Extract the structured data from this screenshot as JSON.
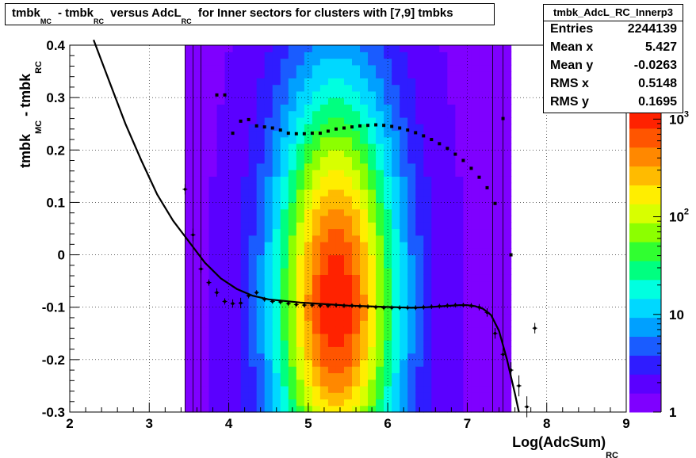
{
  "title": {
    "parts": [
      {
        "text": "tmbk",
        "sub": "MC"
      },
      {
        "text": " - tmbk",
        "sub": "RC"
      },
      {
        "text": " versus AdcL",
        "sub": "RC"
      },
      {
        "text": " for Inner sectors for clusters with [7,9] tmbks",
        "sub": ""
      }
    ]
  },
  "stats": {
    "name": "tmbk_AdcL_RC_Innerp3",
    "rows": [
      {
        "key": "Entries",
        "value": "2244139"
      },
      {
        "key": "Mean x",
        "value": "5.427"
      },
      {
        "key": "Mean y",
        "value": "-0.0263"
      },
      {
        "key": "RMS x",
        "value": "0.5148"
      },
      {
        "key": "RMS y",
        "value": "0.1695"
      }
    ]
  },
  "chart_data": {
    "type": "heatmap",
    "xlabel": "Log(AdcSum)",
    "xlabel_sub": "RC",
    "ylabel": "tmbk",
    "ylabel_sub1": "MC",
    "ylabel_mid": " - tmbk",
    "ylabel_sub2": "RC",
    "xlim": [
      2,
      9
    ],
    "ylim": [
      -0.3,
      0.4
    ],
    "x_ticks": [
      "2",
      "3",
      "4",
      "5",
      "6",
      "7",
      "8",
      "9"
    ],
    "y_ticks": [
      "-0.3",
      "-0.2",
      "-0.1",
      "0",
      "0.1",
      "0.2",
      "0.3",
      "0.4"
    ],
    "grid": true,
    "log_z": true,
    "z_ticks": [
      {
        "label": "1",
        "value": 1
      },
      {
        "label": "10",
        "value": 10
      },
      {
        "label": "10",
        "sup": "2",
        "value": 100
      },
      {
        "label": "10",
        "sup": "3",
        "value": 1000
      }
    ],
    "density": {
      "x_center": 5.35,
      "x_sigma": 0.55,
      "y_center": -0.1,
      "y_sigma_low": 0.25,
      "y_sigma_high": 0.3,
      "x_min": 3.45,
      "x_max": 7.5
    },
    "mean_profile": {
      "x": [
        3.45,
        3.55,
        3.65,
        3.75,
        3.85,
        3.95,
        4.05,
        4.15,
        4.25,
        4.35,
        4.45,
        4.55,
        4.65,
        4.75,
        4.85,
        4.95,
        5.05,
        5.15,
        5.25,
        5.35,
        5.45,
        5.55,
        5.65,
        5.75,
        5.85,
        5.95,
        6.05,
        6.15,
        6.25,
        6.35,
        6.45,
        6.55,
        6.65,
        6.75,
        6.85,
        6.95,
        7.05,
        7.15,
        7.25,
        7.35,
        7.45,
        7.55,
        7.65,
        7.75,
        7.85
      ],
      "y": [
        0.125,
        0.038,
        -0.027,
        -0.053,
        -0.072,
        -0.089,
        -0.093,
        -0.092,
        -0.078,
        -0.072,
        -0.085,
        -0.089,
        -0.09,
        -0.093,
        -0.095,
        -0.096,
        -0.096,
        -0.097,
        -0.097,
        -0.096,
        -0.097,
        -0.097,
        -0.098,
        -0.099,
        -0.1,
        -0.101,
        -0.101,
        -0.101,
        -0.101,
        -0.101,
        -0.1,
        -0.099,
        -0.098,
        -0.097,
        -0.096,
        -0.096,
        -0.097,
        -0.1,
        -0.11,
        -0.15,
        -0.19,
        -0.22,
        -0.25,
        -0.29,
        -0.14
      ],
      "err": [
        0.01,
        0.012,
        0.008,
        0.006,
        0.008,
        0.006,
        0.008,
        0.01,
        0.005,
        0.004,
        0.003,
        0.002,
        0.002,
        0.002,
        0.002,
        0.001,
        0.001,
        0.001,
        0.001,
        0.001,
        0.001,
        0.001,
        0.001,
        0.001,
        0.001,
        0.001,
        0.001,
        0.001,
        0.001,
        0.001,
        0.001,
        0.002,
        0.002,
        0.002,
        0.003,
        0.004,
        0.005,
        0.006,
        0.008,
        0.01,
        0.012,
        0.015,
        0.02,
        0.02,
        0.01
      ]
    },
    "rms_profile": {
      "x": [
        3.85,
        3.95,
        4.05,
        4.15,
        4.25,
        4.35,
        4.45,
        4.55,
        4.65,
        4.75,
        4.85,
        4.95,
        5.05,
        5.15,
        5.25,
        5.35,
        5.45,
        5.55,
        5.65,
        5.75,
        5.85,
        5.95,
        6.05,
        6.15,
        6.25,
        6.35,
        6.45,
        6.55,
        6.65,
        6.75,
        6.85,
        6.95,
        7.05,
        7.15,
        7.25,
        7.35,
        7.45,
        7.55
      ],
      "y": [
        0.305,
        0.305,
        0.232,
        0.255,
        0.258,
        0.246,
        0.244,
        0.242,
        0.238,
        0.232,
        0.231,
        0.231,
        0.232,
        0.232,
        0.236,
        0.24,
        0.242,
        0.244,
        0.246,
        0.247,
        0.248,
        0.247,
        0.245,
        0.242,
        0.238,
        0.233,
        0.227,
        0.22,
        0.212,
        0.203,
        0.192,
        0.18,
        0.165,
        0.148,
        0.128,
        0.098,
        0.26,
        0.0
      ]
    },
    "fit_curve": {
      "x": [
        2.3,
        2.5,
        2.7,
        2.9,
        3.1,
        3.3,
        3.5,
        3.7,
        3.9,
        4.1,
        4.3,
        4.5,
        4.7,
        4.9,
        5.1,
        5.3,
        5.5,
        5.7,
        5.9,
        6.1,
        6.3,
        6.5,
        6.7,
        6.9,
        7.0,
        7.1,
        7.2,
        7.3,
        7.4,
        7.5,
        7.6,
        7.65
      ],
      "y": [
        0.41,
        0.33,
        0.25,
        0.18,
        0.115,
        0.065,
        0.025,
        -0.015,
        -0.045,
        -0.065,
        -0.078,
        -0.085,
        -0.088,
        -0.091,
        -0.093,
        -0.095,
        -0.097,
        -0.098,
        -0.099,
        -0.1,
        -0.101,
        -0.1,
        -0.098,
        -0.096,
        -0.096,
        -0.098,
        -0.103,
        -0.115,
        -0.145,
        -0.2,
        -0.265,
        -0.305
      ]
    },
    "colors": {
      "palette": [
        "#7f00ff",
        "#5a00ff",
        "#2f1cff",
        "#1a5cff",
        "#00a0ff",
        "#00d8ff",
        "#00ffe0",
        "#00ff80",
        "#30ff30",
        "#8cff00",
        "#d8ff00",
        "#ffee00",
        "#ffbb00",
        "#ff8800",
        "#ff5500",
        "#ff2200"
      ]
    }
  }
}
